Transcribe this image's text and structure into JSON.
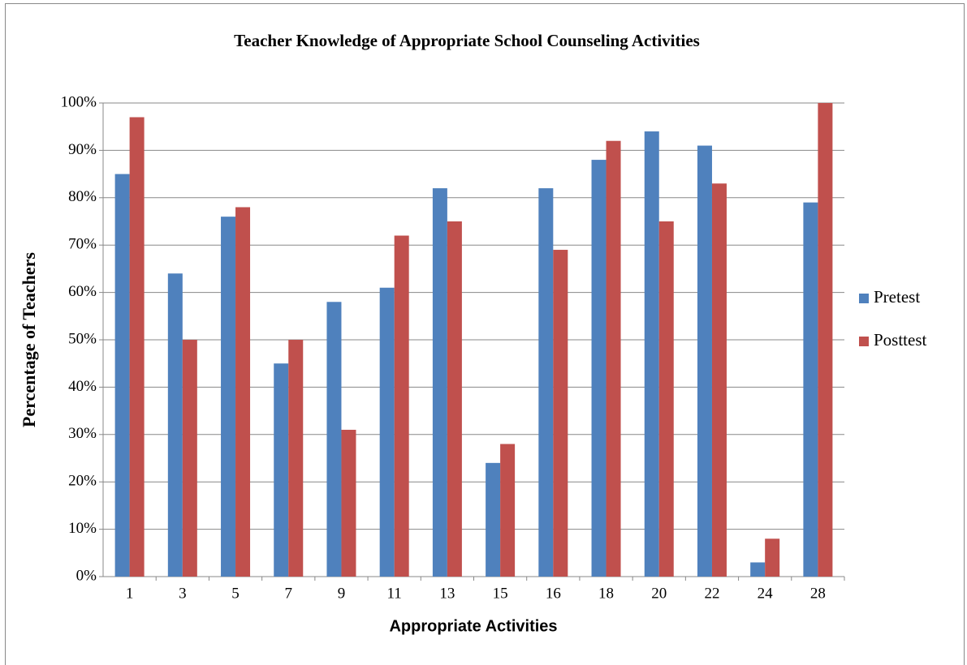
{
  "chart_data": {
    "type": "bar",
    "title": "Teacher Knowledge of Appropriate  School Counseling Activities",
    "x_label": "Appropriate Activities",
    "y_label": "Percentage of Teachers",
    "categories": [
      "1",
      "3",
      "5",
      "7",
      "9",
      "11",
      "13",
      "15",
      "16",
      "18",
      "20",
      "22",
      "24",
      "28"
    ],
    "series": [
      {
        "name": "Pretest",
        "color": "#4f81bd",
        "values": [
          85,
          64,
          76,
          45,
          58,
          61,
          82,
          24,
          82,
          88,
          94,
          91,
          3,
          79
        ]
      },
      {
        "name": "Posttest",
        "color": "#c0504d",
        "values": [
          97,
          50,
          78,
          50,
          31,
          72,
          75,
          28,
          69,
          92,
          75,
          83,
          8,
          100
        ]
      }
    ],
    "ylim": [
      0,
      100
    ],
    "yticks": [
      {
        "value": 0,
        "label": "0%"
      },
      {
        "value": 10,
        "label": "10%"
      },
      {
        "value": 20,
        "label": "20%"
      },
      {
        "value": 30,
        "label": "30%"
      },
      {
        "value": 40,
        "label": "40%"
      },
      {
        "value": 50,
        "label": "50%"
      },
      {
        "value": 60,
        "label": "60%"
      },
      {
        "value": 70,
        "label": "70%"
      },
      {
        "value": 80,
        "label": "80%"
      },
      {
        "value": 90,
        "label": "90%"
      },
      {
        "value": 100,
        "label": "100%"
      }
    ],
    "grid": true,
    "legend": "right"
  }
}
